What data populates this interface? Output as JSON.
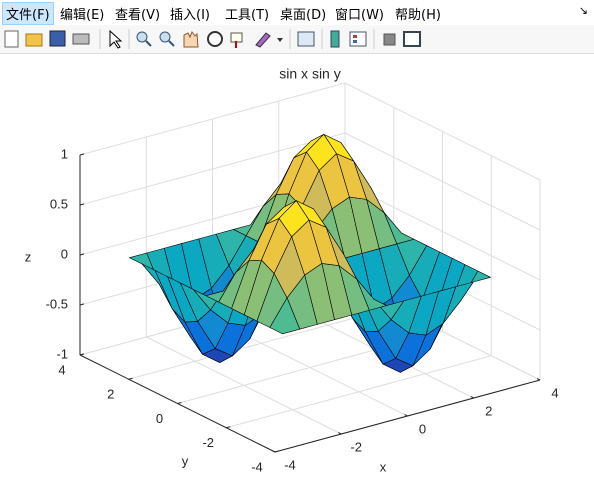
{
  "menu": [
    "文件(F)",
    "编辑(E)",
    "查看(V)",
    "插入(I)",
    "工具(T)",
    "桌面(D)",
    "窗口(W)",
    "帮助(H)"
  ],
  "chart_data": {
    "type": "surface",
    "title": "sin x sin y",
    "x_label": "x",
    "y_label": "y",
    "z_label": "z",
    "colormap": "parula",
    "grid": true,
    "x": [
      -3.14,
      -2.62,
      -2.09,
      -1.57,
      -1.05,
      -0.52,
      0,
      0.52,
      1.05,
      1.57,
      2.09,
      2.62,
      3.14
    ],
    "y": [
      -3.14,
      -2.62,
      -2.09,
      -1.57,
      -1.05,
      -0.52,
      0,
      0.52,
      1.05,
      1.57,
      2.09,
      2.62,
      3.14
    ],
    "z": [
      [
        0,
        0,
        0,
        0,
        0,
        0,
        0,
        0,
        0,
        0,
        0,
        0,
        0
      ],
      [
        0,
        0.25,
        0.43,
        0.5,
        0.43,
        0.25,
        0,
        -0.25,
        -0.43,
        -0.5,
        -0.43,
        -0.25,
        0
      ],
      [
        0,
        0.43,
        0.75,
        0.87,
        0.75,
        0.43,
        0,
        -0.43,
        -0.75,
        -0.87,
        -0.75,
        -0.43,
        0
      ],
      [
        0,
        0.5,
        0.87,
        1,
        0.87,
        0.5,
        0,
        -0.5,
        -0.87,
        -1,
        -0.87,
        -0.5,
        0
      ],
      [
        0,
        0.43,
        0.75,
        0.87,
        0.75,
        0.43,
        0,
        -0.43,
        -0.75,
        -0.87,
        -0.75,
        -0.43,
        0
      ],
      [
        0,
        0.25,
        0.43,
        0.5,
        0.43,
        0.25,
        0,
        -0.25,
        -0.43,
        -0.5,
        -0.43,
        -0.25,
        0
      ],
      [
        0,
        0,
        0,
        0,
        0,
        0,
        0,
        0,
        0,
        0,
        0,
        0,
        0
      ],
      [
        0,
        -0.25,
        -0.43,
        -0.5,
        -0.43,
        -0.25,
        0,
        0.25,
        0.43,
        0.5,
        0.43,
        0.25,
        0
      ],
      [
        0,
        -0.43,
        -0.75,
        -0.87,
        -0.75,
        -0.43,
        0,
        0.43,
        0.75,
        0.87,
        0.75,
        0.43,
        0
      ],
      [
        0,
        -0.5,
        -0.87,
        -1,
        -0.87,
        -0.5,
        0,
        0.5,
        0.87,
        1,
        0.87,
        0.5,
        0
      ],
      [
        0,
        -0.43,
        -0.75,
        -0.87,
        -0.75,
        -0.43,
        0,
        0.43,
        0.75,
        0.87,
        0.75,
        0.43,
        0
      ],
      [
        0,
        -0.25,
        -0.43,
        -0.5,
        -0.43,
        -0.25,
        0,
        0.25,
        0.43,
        0.5,
        0.43,
        0.25,
        0
      ],
      [
        0,
        0,
        0,
        0,
        0,
        0,
        0,
        0,
        0,
        0,
        0,
        0,
        0
      ]
    ],
    "xlim": [
      -4,
      4
    ],
    "xticks": [
      -4,
      -2,
      0,
      2,
      4
    ],
    "ylim": [
      -4,
      4
    ],
    "yticks": [
      -4,
      -2,
      0,
      2,
      4
    ],
    "zlim": [
      -1,
      1
    ],
    "zticks": [
      -1,
      -0.5,
      0,
      0.5,
      1
    ]
  }
}
